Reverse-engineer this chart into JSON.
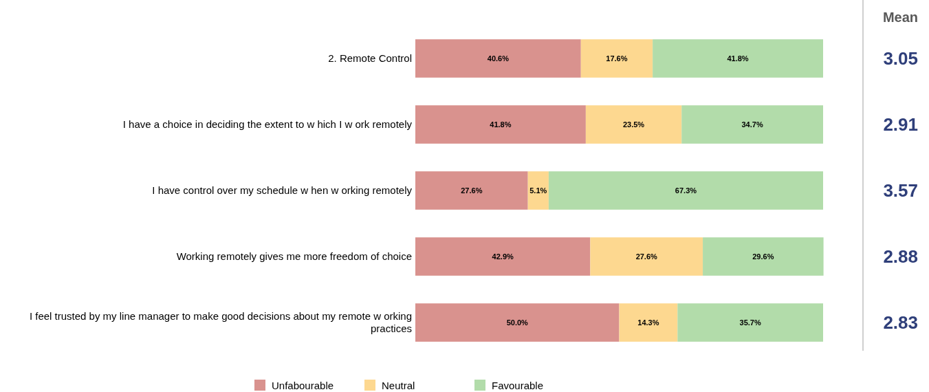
{
  "chart_data": {
    "type": "bar",
    "orientation": "horizontal",
    "stacked": true,
    "categories": [
      "2. Remote Control",
      "I have a choice in deciding the extent to w hich I w ork remotely",
      "I have control over my schedule w hen w orking remotely",
      "Working remotely gives me more freedom of choice",
      "I feel trusted by my line manager to make good decisions about my remote w orking practices"
    ],
    "xlim": [
      0,
      100
    ],
    "series": [
      {
        "name": "Unfabourable",
        "color": "#d9928e",
        "values": [
          40.6,
          41.8,
          27.6,
          42.9,
          50.0
        ],
        "value_labels": [
          "40.6%",
          "41.8%",
          "27.6%",
          "42.9%",
          "50.0%"
        ]
      },
      {
        "name": "Neutral",
        "color": "#fdd890",
        "values": [
          17.6,
          23.5,
          5.1,
          27.6,
          14.3
        ],
        "value_labels": [
          "17.6%",
          "23.5%",
          "5.1%",
          "27.6%",
          "14.3%"
        ]
      },
      {
        "name": "Favourable",
        "color": "#b2dcaa",
        "values": [
          41.8,
          34.7,
          67.3,
          29.6,
          35.7
        ],
        "value_labels": [
          "41.8%",
          "34.7%",
          "67.3%",
          "29.6%",
          "35.7%"
        ]
      }
    ],
    "legend": "bottom",
    "annotations": [
      "Mean",
      "3.05",
      "2.91",
      "3.57",
      "2.88",
      "2.83"
    ]
  }
}
